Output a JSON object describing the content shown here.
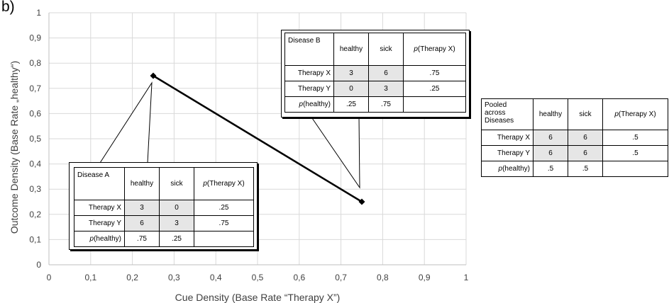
{
  "panel_label": "b)",
  "chart_data": {
    "type": "scatter",
    "xlabel": "Cue Density (Base Rate “Therapy X”)",
    "ylabel": "Outcome Density (Base Rate „healthy“)",
    "xlim": [
      0,
      1
    ],
    "ylim": [
      0,
      1
    ],
    "x_ticks": [
      "0",
      "0,1",
      "0,2",
      "0,3",
      "0,4",
      "0,5",
      "0,6",
      "0,7",
      "0,8",
      "0,9",
      "1"
    ],
    "y_ticks": [
      "0",
      "0,1",
      "0,2",
      "0,3",
      "0,4",
      "0,5",
      "0,6",
      "0,7",
      "0,8",
      "0,9",
      "1"
    ],
    "grid": true,
    "series": [
      {
        "x": [
          0.25,
          0.75
        ],
        "y": [
          0.75,
          0.25
        ],
        "marker": "diamond",
        "line": true
      }
    ]
  },
  "tables": {
    "disease_a": {
      "title": "Disease A",
      "col_headers": [
        "healthy",
        "sick",
        "(Therapy X)"
      ],
      "p_symbol": "p",
      "rows": [
        {
          "label": "Therapy X",
          "cells": [
            "3",
            "0"
          ],
          "p": ".25"
        },
        {
          "label": "Therapy Y",
          "cells": [
            "6",
            "3"
          ],
          "p": ".75"
        }
      ],
      "footer": {
        "p_symbol": "p",
        "label": "(healthy)",
        "values": [
          ".75",
          ".25"
        ]
      }
    },
    "disease_b": {
      "title": "Disease B",
      "col_headers": [
        "healthy",
        "sick",
        "(Therapy X)"
      ],
      "p_symbol": "p",
      "rows": [
        {
          "label": "Therapy X",
          "cells": [
            "3",
            "6"
          ],
          "p": ".75"
        },
        {
          "label": "Therapy Y",
          "cells": [
            "0",
            "3"
          ],
          "p": ".25"
        }
      ],
      "footer": {
        "p_symbol": "p",
        "label": "(healthy)",
        "values": [
          ".25",
          ".75"
        ]
      }
    },
    "pooled": {
      "title_lines": [
        "Pooled",
        "across",
        "Diseases"
      ],
      "col_headers": [
        "healthy",
        "sick",
        "(Therapy X)"
      ],
      "p_symbol": "p",
      "rows": [
        {
          "label": "Therapy X",
          "cells": [
            "6",
            "6"
          ],
          "p": ".5"
        },
        {
          "label": "Therapy Y",
          "cells": [
            "6",
            "6"
          ],
          "p": ".5"
        }
      ],
      "footer": {
        "p_symbol": "p",
        "label": "(healthy)",
        "values": [
          ".5",
          ".5"
        ]
      }
    }
  }
}
